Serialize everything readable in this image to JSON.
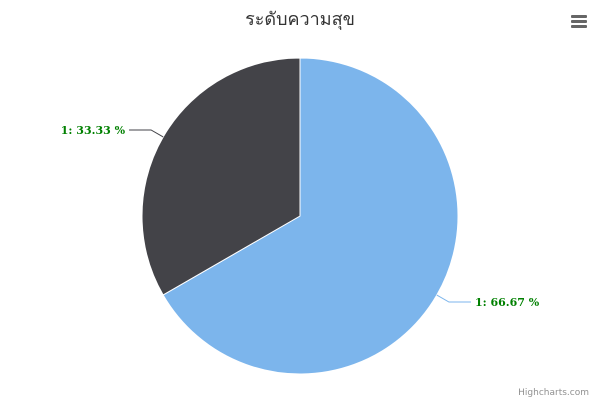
{
  "chart_data": {
    "type": "pie",
    "title": "ระดับความสุข",
    "slices": [
      {
        "name": "1",
        "value": 66.67,
        "label": "1: 66.67 %",
        "color": "#7cb5ec"
      },
      {
        "name": "1",
        "value": 33.33,
        "label": "1: 33.33 %",
        "color": "#434348"
      }
    ],
    "label_color": "#008000",
    "legend": "none"
  },
  "menu": {
    "icon": "hamburger-menu-icon"
  },
  "credits": {
    "text": "Highcharts.com"
  }
}
